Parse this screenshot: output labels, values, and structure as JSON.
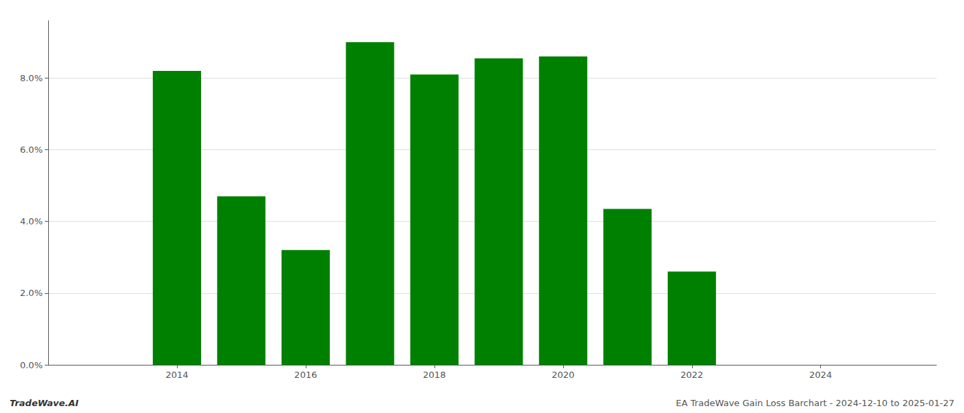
{
  "chart_data": {
    "type": "bar",
    "x": [
      2013,
      2014,
      2015,
      2016,
      2017,
      2018,
      2019,
      2020,
      2021,
      2022,
      2023,
      2024
    ],
    "values": [
      0.0,
      0.082,
      0.047,
      0.032,
      0.09,
      0.081,
      0.0855,
      0.086,
      0.0435,
      0.026,
      0.0,
      0.0
    ],
    "color": "#008000",
    "xlim": [
      2012.0,
      2025.8
    ],
    "xticks": [
      2014,
      2016,
      2018,
      2020,
      2022,
      2024
    ],
    "ylim": [
      0.0,
      0.096
    ],
    "yticks": [
      {
        "value": 0.0,
        "label": "0.0%"
      },
      {
        "value": 0.02,
        "label": "2.0%"
      },
      {
        "value": 0.04,
        "label": "4.0%"
      },
      {
        "value": 0.06,
        "label": "6.0%"
      },
      {
        "value": 0.08,
        "label": "8.0%"
      }
    ],
    "grid": true,
    "annotations": [
      "TradeWave.AI",
      "EA TradeWave Gain Loss Barchart - 2024-12-10 to 2025-01-27"
    ]
  }
}
